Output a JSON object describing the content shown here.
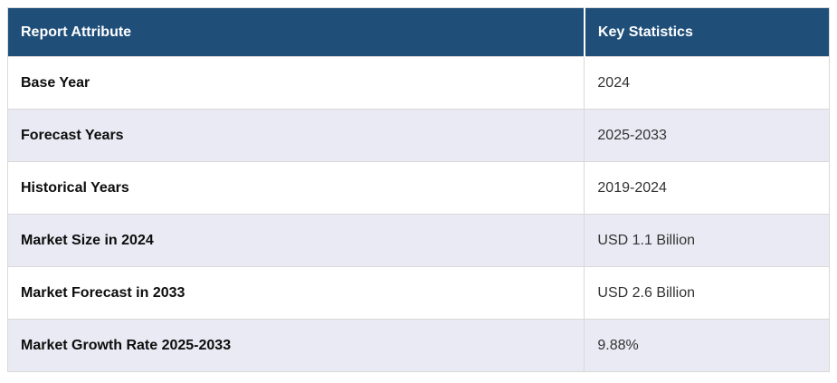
{
  "table": {
    "columns": [
      {
        "label": "Report Attribute"
      },
      {
        "label": "Key Statistics"
      }
    ],
    "rows": [
      {
        "attribute": "Base Year",
        "value": "2024"
      },
      {
        "attribute": "Forecast Years",
        "value": "2025-2033"
      },
      {
        "attribute": "Historical Years",
        "value": "2019-2024"
      },
      {
        "attribute": "Market Size in 2024",
        "value": "USD 1.1 Billion"
      },
      {
        "attribute": "Market Forecast in 2033",
        "value": "USD 2.6 Billion"
      },
      {
        "attribute": "Market Growth Rate 2025-2033",
        "value": "9.88%"
      }
    ],
    "colors": {
      "header_bg": "#1f4e79",
      "header_text": "#ffffff",
      "row_bg": "#ffffff",
      "row_alt_bg": "#e9eaf3",
      "border": "#d9d9d9"
    }
  },
  "chart_data": {
    "type": "table",
    "title": "",
    "columns": [
      "Report Attribute",
      "Key Statistics"
    ],
    "rows": [
      [
        "Base Year",
        "2024"
      ],
      [
        "Forecast Years",
        "2025-2033"
      ],
      [
        "Historical Years",
        "2019-2024"
      ],
      [
        "Market Size in 2024",
        "USD 1.1 Billion"
      ],
      [
        "Market Forecast in 2033",
        "USD 2.6 Billion"
      ],
      [
        "Market Growth Rate 2025-2033",
        "9.88%"
      ]
    ]
  }
}
